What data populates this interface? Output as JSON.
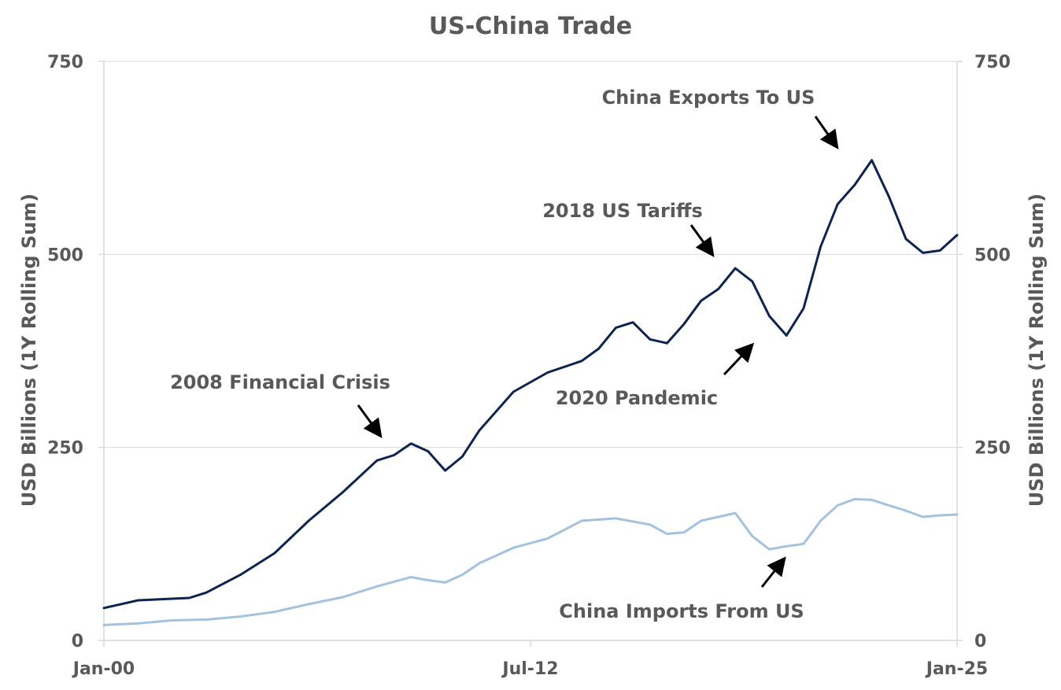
{
  "chart_data": {
    "type": "line",
    "title": "US-China Trade",
    "ylabel_left": "USD  Billions  (1Y  Rolling  Sum)",
    "ylabel_right": "USD  Billions  (1Y  Rolling  Sum)",
    "ylim": [
      0,
      750
    ],
    "yticks": [
      "0",
      "250",
      "500",
      "750"
    ],
    "xlim": [
      2000.0,
      2025.0
    ],
    "xticks": [
      {
        "label": "Jan-00",
        "value": 2000.0
      },
      {
        "label": "Jul-12",
        "value": 2012.5
      },
      {
        "label": "Jan-25",
        "value": 2025.0
      }
    ],
    "grid": true,
    "colors": {
      "exports": "#0d2350",
      "imports": "#a4c2df",
      "grid": "#d9d9d9",
      "text": "#595959"
    },
    "series": [
      {
        "name": "China Exports To US",
        "x": [
          2000.0,
          2001.0,
          2002.0,
          2002.5,
          2003.0,
          2004.0,
          2005.0,
          2006.0,
          2007.0,
          2008.0,
          2008.5,
          2009.0,
          2009.5,
          2010.0,
          2010.5,
          2011.0,
          2012.0,
          2013.0,
          2014.0,
          2014.5,
          2015.0,
          2015.5,
          2016.0,
          2016.5,
          2017.0,
          2017.5,
          2018.0,
          2018.5,
          2019.0,
          2019.5,
          2020.0,
          2020.5,
          2021.0,
          2021.5,
          2022.0,
          2022.5,
          2023.0,
          2023.5,
          2024.0,
          2024.5,
          2025.0
        ],
        "values": [
          42,
          52,
          54,
          55,
          62,
          85,
          113,
          155,
          192,
          233,
          240,
          255,
          245,
          220,
          238,
          272,
          322,
          347,
          362,
          378,
          405,
          412,
          390,
          385,
          410,
          440,
          455,
          482,
          465,
          420,
          395,
          430,
          510,
          565,
          590,
          622,
          575,
          520,
          502,
          505,
          525
        ]
      },
      {
        "name": "China Imports From US",
        "x": [
          2000.0,
          2001.0,
          2002.0,
          2003.0,
          2004.0,
          2005.0,
          2006.0,
          2007.0,
          2008.0,
          2009.0,
          2009.5,
          2010.0,
          2010.5,
          2011.0,
          2012.0,
          2013.0,
          2014.0,
          2015.0,
          2016.0,
          2016.5,
          2017.0,
          2017.5,
          2018.0,
          2018.5,
          2019.0,
          2019.5,
          2020.0,
          2020.5,
          2021.0,
          2021.5,
          2022.0,
          2022.5,
          2023.0,
          2023.5,
          2024.0,
          2024.5,
          2025.0
        ],
        "values": [
          20,
          22,
          26,
          27,
          31,
          37,
          47,
          56,
          70,
          82,
          78,
          75,
          85,
          100,
          120,
          132,
          155,
          158,
          150,
          138,
          140,
          155,
          160,
          165,
          135,
          118,
          122,
          125,
          155,
          175,
          183,
          182,
          175,
          168,
          160,
          162,
          163
        ]
      }
    ],
    "annotations": [
      {
        "text": "China Exports To US"
      },
      {
        "text": "2018 US Tariffs"
      },
      {
        "text": "2008 Financial Crisis"
      },
      {
        "text": "2020 Pandemic"
      },
      {
        "text": "China Imports From US"
      }
    ]
  }
}
